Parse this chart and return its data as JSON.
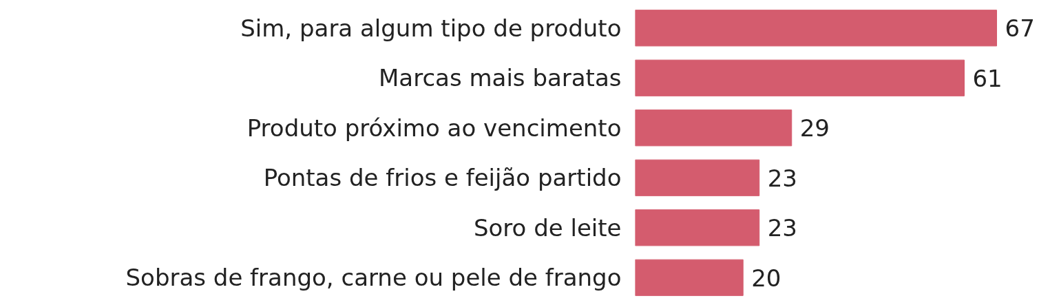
{
  "chart_data": {
    "type": "bar",
    "orientation": "horizontal",
    "data_labels": true,
    "categories": [
      "Sim, para algum tipo de produto",
      "Marcas mais baratas",
      "Produto próximo ao vencimento",
      "Pontas de frios e feijão partido",
      "Soro de leite",
      "Sobras de frango, carne ou pele de frango"
    ],
    "values": [
      67,
      61,
      29,
      23,
      23,
      20
    ],
    "color": "#d45c6e",
    "tick_labels": "y"
  }
}
